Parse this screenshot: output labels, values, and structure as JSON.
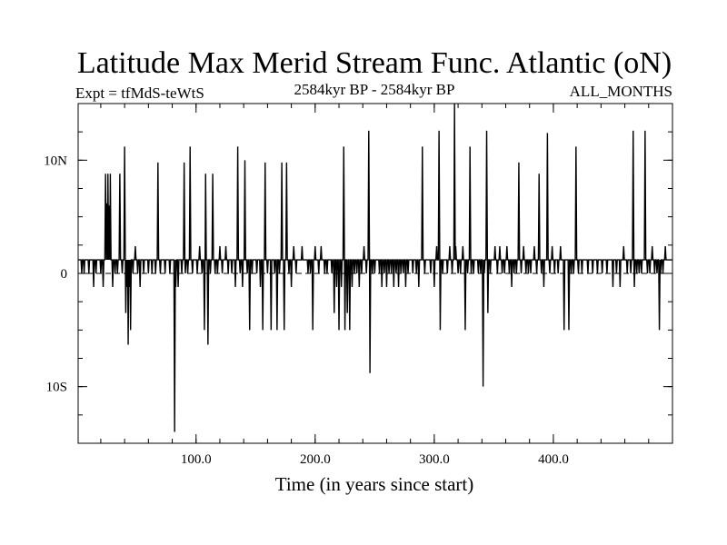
{
  "chart_data": {
    "type": "line",
    "title": "Latitude Max Merid Stream Func. Atlantic (oN)",
    "subtitle_left": "Expt = tfMdS-teWtS",
    "subtitle_center": "2584kyr BP - 2584kyr BP",
    "subtitle_right": "ALL_MONTHS",
    "xlabel": "Time (in years since start)",
    "ylabel": "",
    "xlim": [
      1,
      500
    ],
    "ylim": [
      -15,
      15
    ],
    "x_ticks": [
      100,
      200,
      300,
      400
    ],
    "x_tick_labels": [
      "100.0",
      "200.0",
      "300.0",
      "400.0"
    ],
    "y_ticks": [
      -10,
      0,
      10
    ],
    "y_tick_labels": [
      "10S",
      "0",
      "10N"
    ],
    "reference_line": 0,
    "baseline": 1.2,
    "series": [
      {
        "name": "latitude_max",
        "spikes": [
          [
            2,
            1.2
          ],
          [
            4,
            0
          ],
          [
            6,
            0
          ],
          [
            10,
            0
          ],
          [
            14,
            -1.2
          ],
          [
            16,
            0
          ],
          [
            20,
            0
          ],
          [
            22,
            -1.2
          ],
          [
            24,
            8.8
          ],
          [
            25,
            6.2
          ],
          [
            26,
            8.8
          ],
          [
            27,
            6
          ],
          [
            28,
            8.8
          ],
          [
            30,
            -1.2
          ],
          [
            32,
            0
          ],
          [
            34,
            0
          ],
          [
            36,
            8.8
          ],
          [
            38,
            0
          ],
          [
            40,
            11.2
          ],
          [
            41,
            -3.5
          ],
          [
            42,
            -1.2
          ],
          [
            43,
            -6.3
          ],
          [
            44,
            -1.2
          ],
          [
            45,
            -5.0
          ],
          [
            47,
            0
          ],
          [
            49,
            2.4
          ],
          [
            51,
            0
          ],
          [
            53,
            -1.2
          ],
          [
            56,
            0
          ],
          [
            60,
            0
          ],
          [
            63,
            0
          ],
          [
            66,
            0
          ],
          [
            68,
            9.8
          ],
          [
            70,
            0
          ],
          [
            74,
            0
          ],
          [
            78,
            0
          ],
          [
            80,
            1.2
          ],
          [
            82,
            -14
          ],
          [
            83,
            -1.2
          ],
          [
            85,
            -1.2
          ],
          [
            88,
            0
          ],
          [
            90,
            9.8
          ],
          [
            91,
            0
          ],
          [
            93,
            0
          ],
          [
            95,
            11.2
          ],
          [
            97,
            0
          ],
          [
            99,
            1.2
          ],
          [
            101,
            0
          ],
          [
            103,
            2.4
          ],
          [
            105,
            0
          ],
          [
            107,
            -5.0
          ],
          [
            108,
            8.8
          ],
          [
            110,
            -6.3
          ],
          [
            112,
            0
          ],
          [
            114,
            8.8
          ],
          [
            116,
            0
          ],
          [
            118,
            0
          ],
          [
            120,
            2.4
          ],
          [
            122,
            0
          ],
          [
            125,
            2.4
          ],
          [
            127,
            0
          ],
          [
            130,
            0
          ],
          [
            133,
            -1.2
          ],
          [
            135,
            11.2
          ],
          [
            137,
            0
          ],
          [
            139,
            -1.2
          ],
          [
            141,
            10.0
          ],
          [
            143,
            0
          ],
          [
            145,
            -5.0
          ],
          [
            147,
            0
          ],
          [
            151,
            0
          ],
          [
            154,
            -1.2
          ],
          [
            156,
            -5.0
          ],
          [
            158,
            9.8
          ],
          [
            160,
            0
          ],
          [
            163,
            -5.0
          ],
          [
            166,
            0
          ],
          [
            168,
            -5.0
          ],
          [
            170,
            0
          ],
          [
            172,
            9.8
          ],
          [
            174,
            -5.0
          ],
          [
            176,
            9.8
          ],
          [
            178,
            0
          ],
          [
            180,
            -1.2
          ],
          [
            182,
            2.4
          ],
          [
            184,
            0
          ],
          [
            187,
            1.2
          ],
          [
            189,
            2.4
          ],
          [
            192,
            1.2
          ],
          [
            194,
            0
          ],
          [
            196,
            0
          ],
          [
            198,
            -5.0
          ],
          [
            200,
            2.4
          ],
          [
            203,
            0
          ],
          [
            205,
            2.4
          ],
          [
            208,
            0
          ],
          [
            210,
            0
          ],
          [
            212,
            1.2
          ],
          [
            214,
            0
          ],
          [
            216,
            -3.5
          ],
          [
            218,
            -1.2
          ],
          [
            220,
            -5.0
          ],
          [
            222,
            -1.2
          ],
          [
            224,
            11.2
          ],
          [
            225,
            -5.0
          ],
          [
            227,
            -3.5
          ],
          [
            229,
            -5.0
          ],
          [
            231,
            -1.2
          ],
          [
            233,
            0
          ],
          [
            235,
            0
          ],
          [
            237,
            -1.2
          ],
          [
            239,
            0
          ],
          [
            241,
            2.4
          ],
          [
            243,
            0
          ],
          [
            245,
            12.6
          ],
          [
            246,
            -8.8
          ],
          [
            248,
            0
          ],
          [
            250,
            0
          ],
          [
            252,
            1.2
          ],
          [
            254,
            0
          ],
          [
            256,
            -1.2
          ],
          [
            258,
            0
          ],
          [
            260,
            -1.2
          ],
          [
            262,
            0
          ],
          [
            264,
            0
          ],
          [
            266,
            -1.2
          ],
          [
            268,
            0
          ],
          [
            270,
            -1.2
          ],
          [
            272,
            0
          ],
          [
            274,
            0
          ],
          [
            276,
            -1.2
          ],
          [
            278,
            0
          ],
          [
            280,
            1.2
          ],
          [
            282,
            0
          ],
          [
            285,
            0
          ],
          [
            287,
            -1.2
          ],
          [
            290,
            11.2
          ],
          [
            292,
            0
          ],
          [
            295,
            1.2
          ],
          [
            297,
            0
          ],
          [
            300,
            -1.2
          ],
          [
            302,
            2.4
          ],
          [
            304,
            12.6
          ],
          [
            305,
            -5.0
          ],
          [
            307,
            0
          ],
          [
            309,
            1.2
          ],
          [
            311,
            0
          ],
          [
            313,
            2.4
          ],
          [
            315,
            0
          ],
          [
            317,
            15
          ],
          [
            318,
            2.4
          ],
          [
            320,
            0
          ],
          [
            322,
            0
          ],
          [
            324,
            2.4
          ],
          [
            326,
            -5.0
          ],
          [
            328,
            0
          ],
          [
            330,
            11.2
          ],
          [
            331,
            0
          ],
          [
            333,
            0
          ],
          [
            335,
            1.2
          ],
          [
            337,
            0
          ],
          [
            339,
            0
          ],
          [
            341,
            -10
          ],
          [
            342,
            0
          ],
          [
            344,
            12.6
          ],
          [
            345,
            -3.5
          ],
          [
            347,
            0
          ],
          [
            349,
            1.2
          ],
          [
            351,
            2.4
          ],
          [
            353,
            0
          ],
          [
            355,
            2.4
          ],
          [
            357,
            0
          ],
          [
            359,
            0
          ],
          [
            361,
            2.4
          ],
          [
            363,
            0
          ],
          [
            365,
            -1.2
          ],
          [
            367,
            0
          ],
          [
            369,
            0
          ],
          [
            371,
            9.8
          ],
          [
            373,
            0
          ],
          [
            375,
            2.4
          ],
          [
            377,
            0
          ],
          [
            379,
            0
          ],
          [
            381,
            0
          ],
          [
            384,
            2.4
          ],
          [
            386,
            0
          ],
          [
            388,
            8.8
          ],
          [
            390,
            0
          ],
          [
            392,
            -1.2
          ],
          [
            395,
            12.4
          ],
          [
            397,
            0
          ],
          [
            399,
            2.4
          ],
          [
            401,
            0
          ],
          [
            404,
            0
          ],
          [
            406,
            2.4
          ],
          [
            409,
            -5.0
          ],
          [
            411,
            1.2
          ],
          [
            413,
            -5.0
          ],
          [
            415,
            0
          ],
          [
            417,
            0
          ],
          [
            419,
            11.2
          ],
          [
            421,
            0
          ],
          [
            424,
            0
          ],
          [
            429,
            0
          ],
          [
            433,
            0
          ],
          [
            437,
            0
          ],
          [
            441,
            0
          ],
          [
            445,
            0
          ],
          [
            450,
            -1.2
          ],
          [
            453,
            0
          ],
          [
            456,
            -1.2
          ],
          [
            459,
            2.4
          ],
          [
            462,
            0
          ],
          [
            465,
            0
          ],
          [
            467,
            12.6
          ],
          [
            468,
            -1.2
          ],
          [
            470,
            0
          ],
          [
            472,
            0
          ],
          [
            474,
            0
          ],
          [
            477,
            12.6
          ],
          [
            479,
            0
          ],
          [
            481,
            0
          ],
          [
            483,
            2.4
          ],
          [
            485,
            0
          ],
          [
            487,
            0
          ],
          [
            489,
            -5.0
          ],
          [
            490,
            0
          ],
          [
            492,
            0
          ],
          [
            494,
            2.4
          ],
          [
            496,
            1.2
          ]
        ]
      }
    ]
  }
}
